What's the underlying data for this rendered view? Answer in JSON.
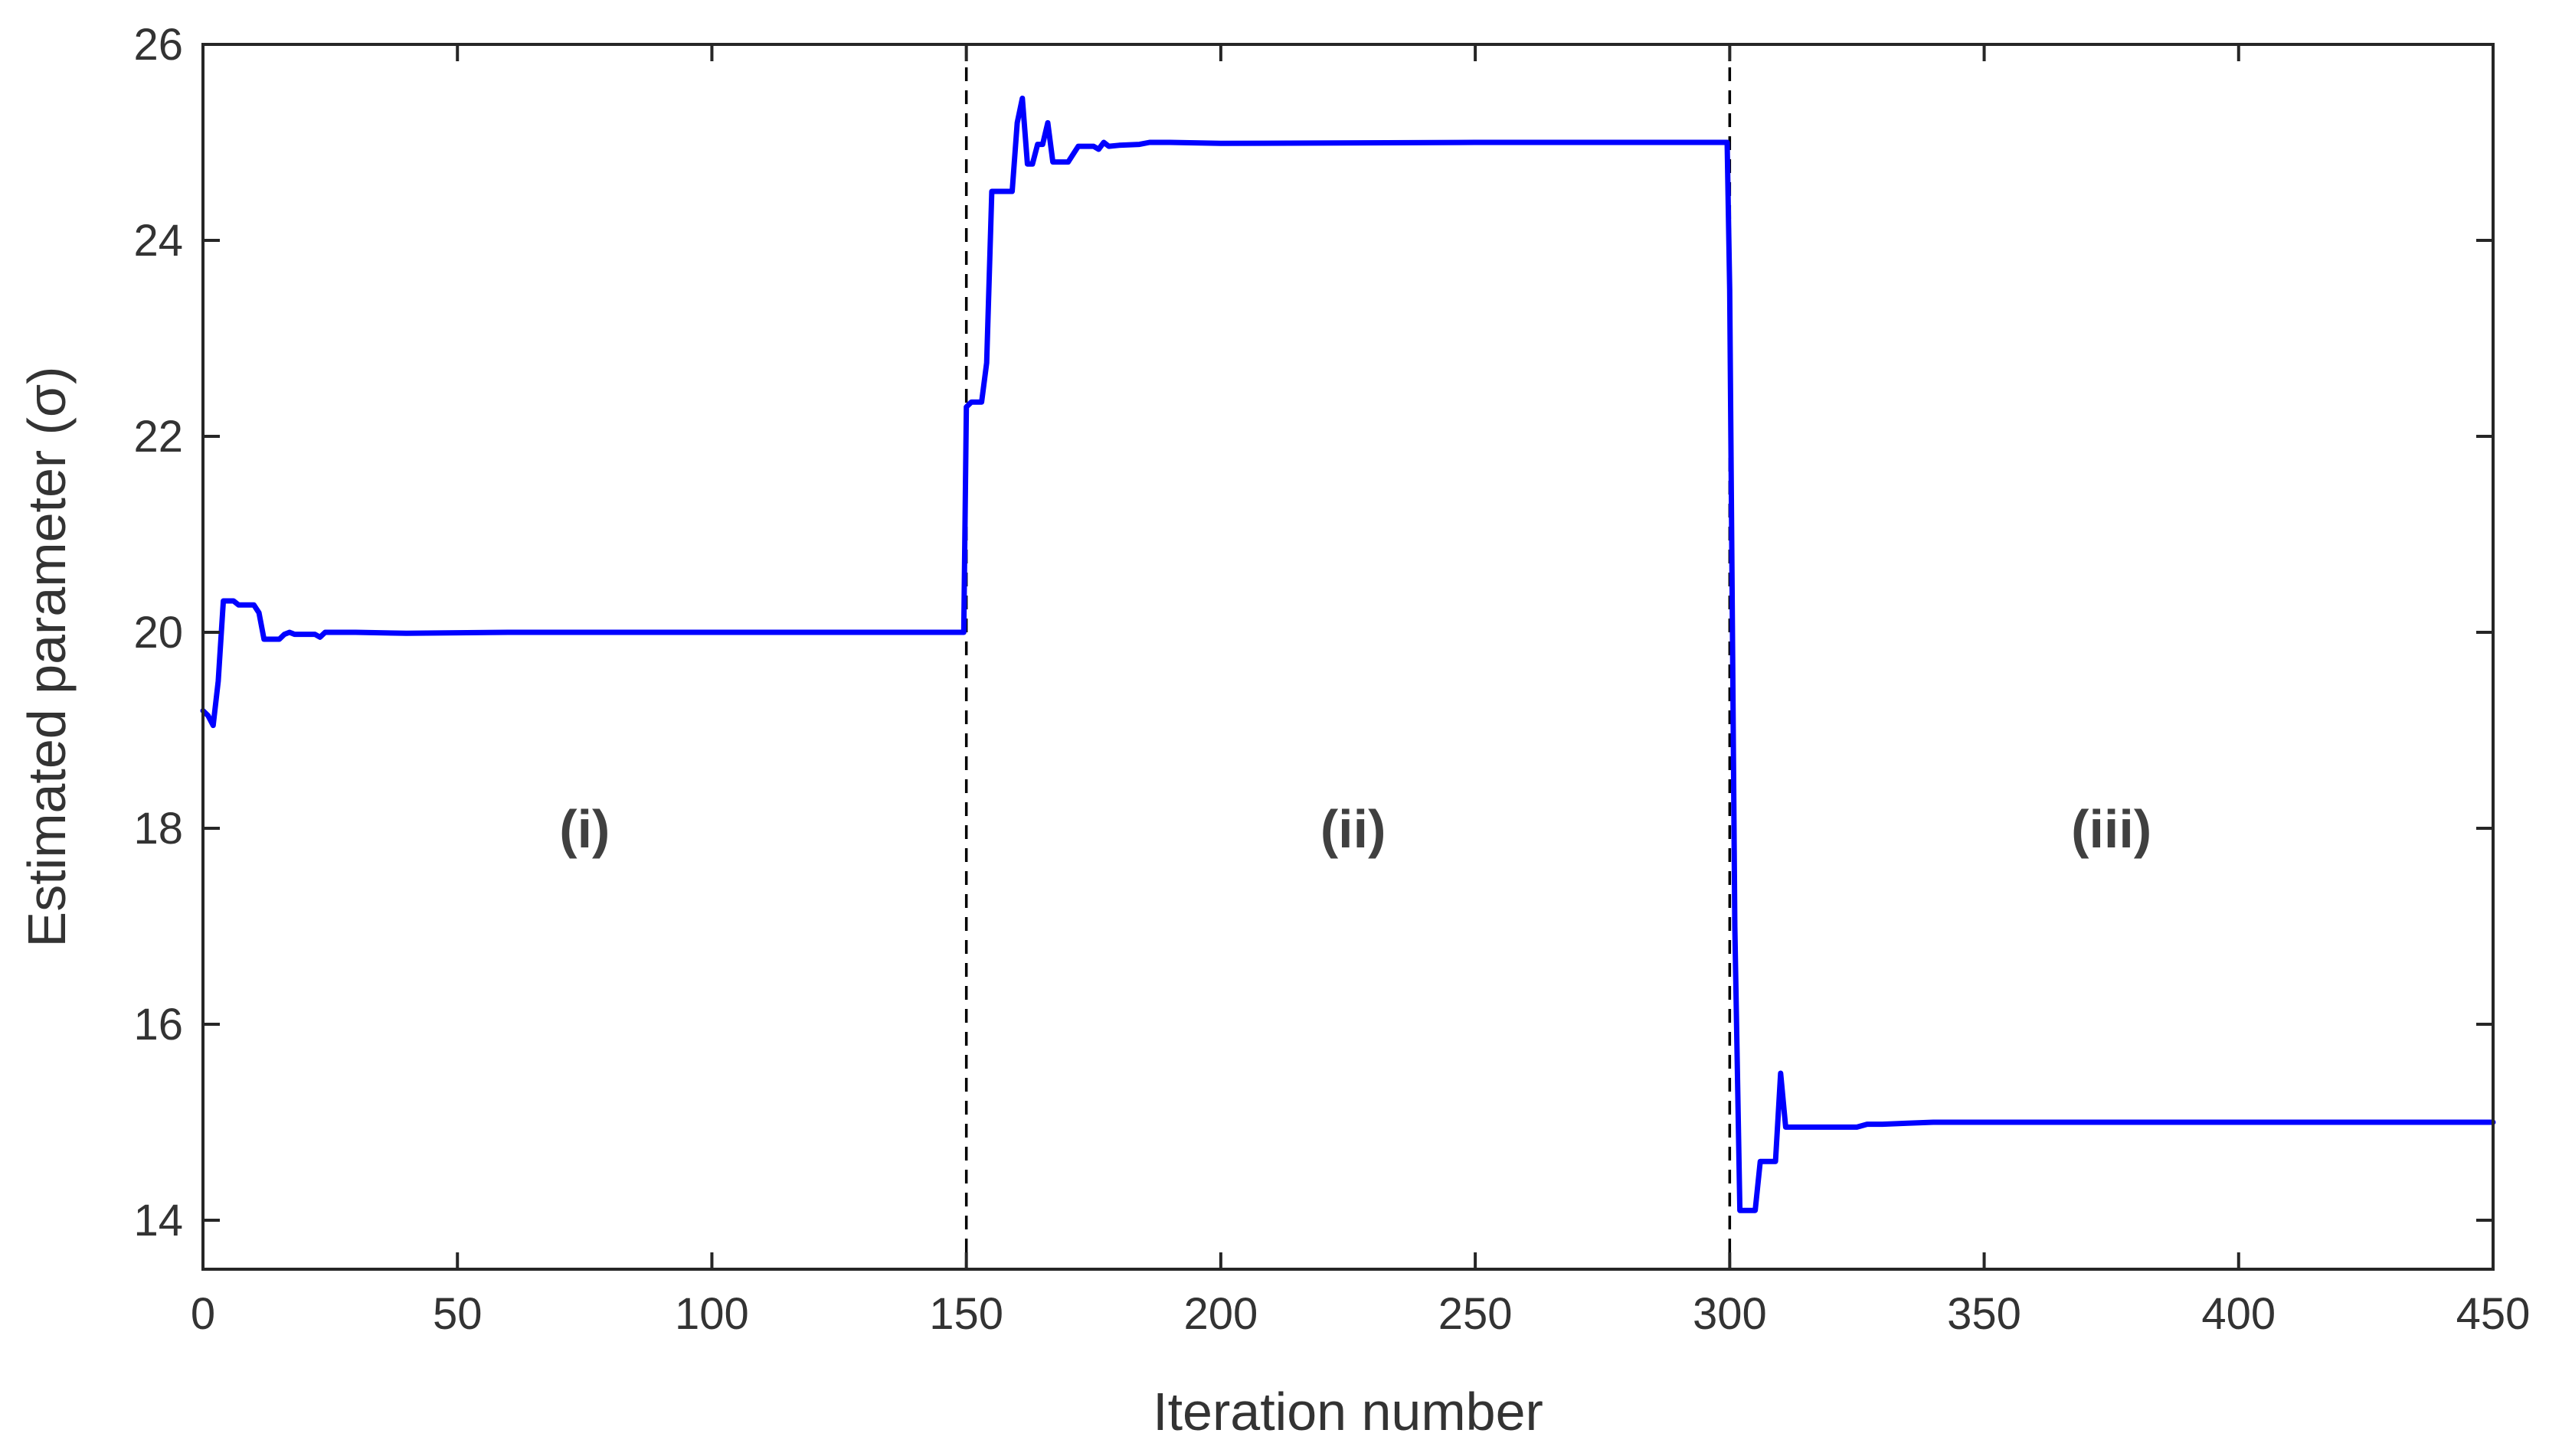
{
  "chart_data": {
    "type": "line",
    "xlabel": "Iteration number",
    "ylabel": "Estimated parameter (σ)",
    "xlim": [
      0,
      450
    ],
    "ylim": [
      13.5,
      26
    ],
    "xticks": [
      0,
      50,
      100,
      150,
      200,
      250,
      300,
      350,
      400,
      450
    ],
    "yticks": [
      14,
      16,
      18,
      20,
      22,
      24,
      26
    ],
    "grid": false,
    "line_color": "#0000ff",
    "divider_color": "#000000",
    "dividers_x": [
      150,
      300
    ],
    "regions": [
      {
        "label": "(i)",
        "x": 75,
        "y": 18
      },
      {
        "label": "(ii)",
        "x": 226,
        "y": 18
      },
      {
        "label": "(iii)",
        "x": 375,
        "y": 18
      }
    ],
    "series": [
      {
        "x": [
          0,
          1,
          2,
          3,
          4,
          5,
          6,
          7,
          8,
          9,
          10,
          11,
          12,
          13,
          14,
          15,
          16,
          17,
          18,
          20,
          22,
          23,
          24,
          25,
          30,
          40,
          60,
          100,
          149.5,
          150,
          151,
          152,
          153,
          154,
          155,
          156,
          157,
          158,
          159,
          160,
          161,
          162,
          163,
          164,
          165,
          166,
          167,
          168,
          170,
          172,
          175,
          176,
          177,
          178,
          180,
          184,
          186,
          190,
          200,
          250,
          299.5,
          300,
          301,
          302,
          303,
          304,
          305,
          306,
          307,
          308,
          309,
          310,
          311,
          315,
          320,
          325,
          327,
          330,
          335,
          340,
          360,
          400,
          450
        ],
        "y": [
          19.2,
          19.15,
          19.05,
          19.5,
          20.32,
          20.32,
          20.32,
          20.28,
          20.28,
          20.28,
          20.28,
          20.2,
          19.93,
          19.93,
          19.93,
          19.93,
          19.98,
          20.0,
          19.98,
          19.98,
          19.98,
          19.95,
          20.0,
          20.0,
          20.0,
          19.99,
          20.0,
          20.0,
          20.0,
          22.3,
          22.35,
          22.35,
          22.35,
          22.75,
          24.5,
          24.5,
          24.5,
          24.5,
          24.5,
          25.2,
          25.45,
          24.78,
          24.78,
          24.98,
          24.98,
          25.2,
          24.8,
          24.8,
          24.8,
          24.96,
          24.96,
          24.93,
          25.0,
          24.96,
          24.97,
          24.98,
          25.0,
          25.0,
          24.99,
          25.0,
          25.0,
          23.5,
          17.0,
          14.1,
          14.1,
          14.1,
          14.1,
          14.6,
          14.6,
          14.6,
          14.6,
          15.5,
          14.95,
          14.95,
          14.95,
          14.95,
          14.98,
          14.98,
          14.99,
          15.0,
          15.0,
          15.0,
          15.0
        ]
      }
    ]
  }
}
